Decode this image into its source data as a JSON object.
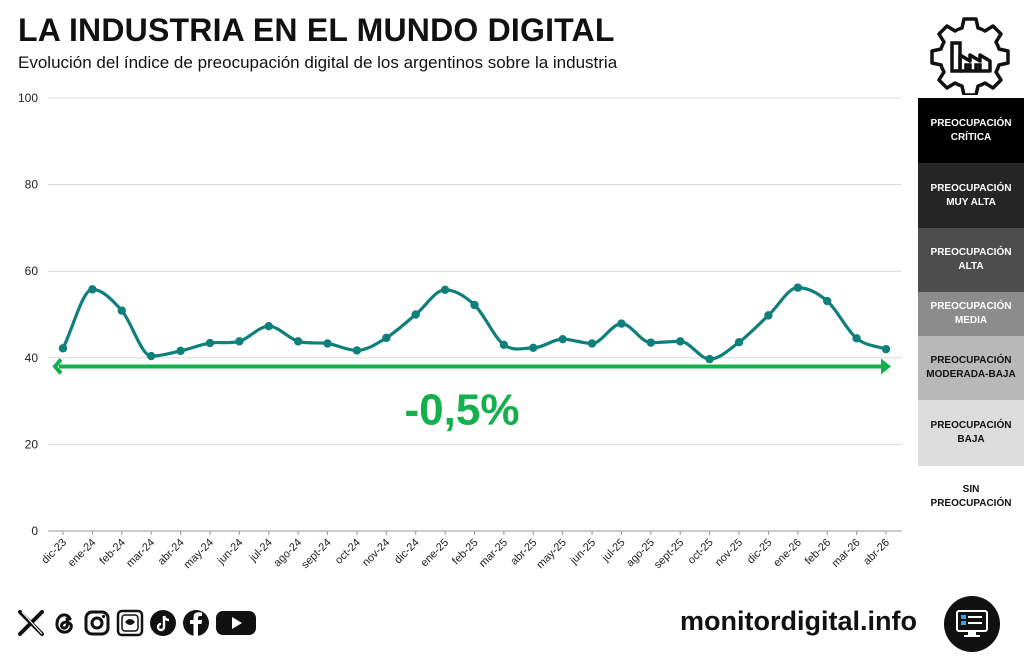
{
  "header": {
    "title": "LA INDUSTRIA EN EL MUNDO DIGITAL",
    "subtitle": "Evolución del índice de preocupación digital de los argentinos sobre la industria"
  },
  "chart_data": {
    "type": "line",
    "title": "LA INDUSTRIA EN EL MUNDO DIGITAL",
    "subtitle": "Evolución del índice de preocupación digital de los argentinos sobre la industria",
    "categories": [
      "dic-23",
      "ene-24",
      "feb-24",
      "mar-24",
      "abr-24",
      "may-24",
      "jun-24",
      "jul-24",
      "ago-24",
      "sept-24",
      "oct-24",
      "nov-24",
      "dic-24",
      "ene-25",
      "feb-25",
      "mar-25",
      "abr-25",
      "may-25",
      "jun-25",
      "jul-25",
      "ago-25",
      "sept-25",
      "oct-25",
      "nov-25",
      "dic-25",
      "ene-26",
      "feb-26",
      "mar-26",
      "abr-26"
    ],
    "series": [
      {
        "name": "Índice de preocupación digital",
        "color": "#0e7f7b",
        "values": [
          42.2,
          55.8,
          50.9,
          40.4,
          41.6,
          43.4,
          43.8,
          47.3,
          43.8,
          43.3,
          41.7,
          44.6,
          50.0,
          55.7,
          52.2,
          43.0,
          42.3,
          44.3,
          43.3,
          47.9,
          43.5,
          43.8,
          39.7,
          43.6,
          49.8,
          56.2,
          53.1,
          44.5,
          42.0
        ]
      }
    ],
    "ylim": [
      0,
      100
    ],
    "yticks": [
      0,
      20,
      40,
      60,
      80,
      100
    ],
    "ytick_labels": [
      "0",
      "20",
      "40",
      "60",
      "80",
      "100"
    ],
    "grid": true,
    "annotation": {
      "text": "-0,5%",
      "color": "#12b14b",
      "from": "dic-23",
      "to": "abr-26",
      "level": 38
    }
  },
  "legend": {
    "items": [
      {
        "label": "PREOCUPACIÓN CRÍTICA",
        "bg": "#000000",
        "fg": "#ffffff"
      },
      {
        "label": "PREOCUPACIÓN MUY ALTA",
        "bg": "#262626",
        "fg": "#ffffff"
      },
      {
        "label": "PREOCUPACIÓN ALTA",
        "bg": "#4d4d4d",
        "fg": "#ffffff"
      },
      {
        "label": "PREOCUPACIÓN MEDIA",
        "bg": "#8c8c8c",
        "fg": "#ffffff"
      },
      {
        "label": "PREOCUPACIÓN MODERADA-BAJA",
        "bg": "#b8b8b8",
        "fg": "#111111"
      },
      {
        "label": "PREOCUPACIÓN BAJA",
        "bg": "#dcdcdc",
        "fg": "#111111"
      },
      {
        "label": "SIN PREOCUPACIÓN",
        "bg": "#ffffff",
        "fg": "#111111"
      }
    ]
  },
  "footer": {
    "social_icons": [
      "x-icon",
      "threads-icon",
      "instagram-icon",
      "bluesky-icon",
      "tiktok-icon",
      "facebook-icon",
      "youtube-icon"
    ],
    "website": "monitordigital.info"
  }
}
